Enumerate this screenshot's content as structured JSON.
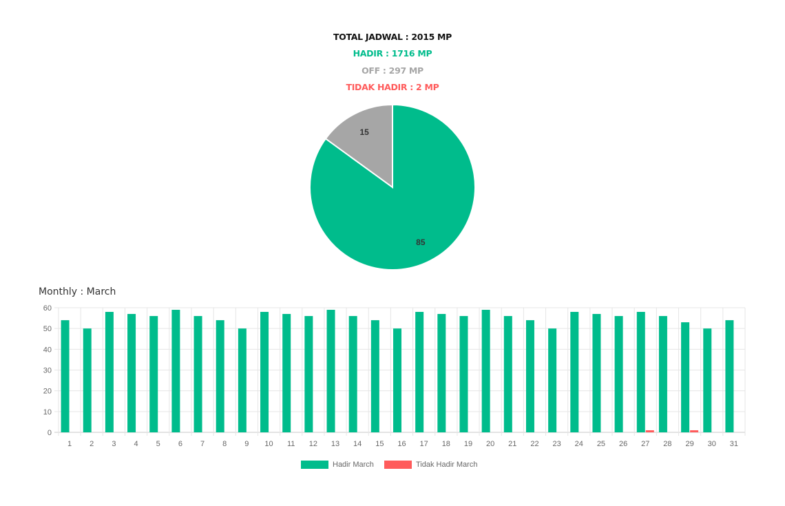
{
  "summary": {
    "total": "TOTAL JADWAL : 2015 MP",
    "hadir": "HADIR : 1716 MP",
    "off": "OFF : 297 MP",
    "tidak_hadir": "TIDAK HADIR : 2 MP"
  },
  "colors": {
    "total": "#111111",
    "hadir": "#00BC8C",
    "off": "#A6A6A6",
    "tidak_hadir": "#FF5B5B",
    "grid": "#E5E5E5",
    "axis_text": "#666666"
  },
  "chart_data": [
    {
      "type": "pie",
      "slices": [
        {
          "value": 85,
          "label": "85",
          "color": "#00BC8C"
        },
        {
          "value": 15,
          "label": "15",
          "color": "#A6A6A6"
        }
      ]
    },
    {
      "type": "bar",
      "title": "Monthly : March",
      "categories": [
        "1",
        "2",
        "3",
        "4",
        "5",
        "6",
        "7",
        "8",
        "9",
        "10",
        "11",
        "12",
        "13",
        "14",
        "15",
        "16",
        "17",
        "18",
        "19",
        "20",
        "21",
        "22",
        "23",
        "24",
        "25",
        "26",
        "27",
        "28",
        "29",
        "30",
        "31"
      ],
      "series": [
        {
          "name": "Hadir March",
          "color": "#00BC8C",
          "values": [
            54,
            50,
            58,
            57,
            56,
            59,
            56,
            54,
            50,
            58,
            57,
            56,
            59,
            56,
            54,
            50,
            58,
            57,
            56,
            59,
            56,
            54,
            50,
            58,
            57,
            56,
            58,
            56,
            53,
            50,
            54
          ]
        },
        {
          "name": "Tidak Hadir March",
          "color": "#FF5B5B",
          "values": [
            0,
            0,
            0,
            0,
            0,
            0,
            0,
            0,
            0,
            0,
            0,
            0,
            0,
            0,
            0,
            0,
            0,
            0,
            0,
            0,
            0,
            0,
            0,
            0,
            0,
            0,
            1,
            0,
            1,
            0,
            0
          ]
        }
      ],
      "ylim": [
        0,
        60
      ],
      "yticks": [
        0,
        10,
        20,
        30,
        40,
        50,
        60
      ],
      "grid": true,
      "legend": "bottom"
    }
  ]
}
